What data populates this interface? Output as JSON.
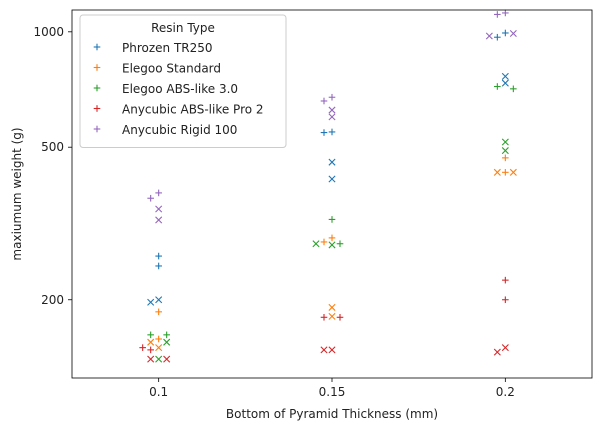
{
  "chart_data": {
    "type": "scatter",
    "xlabel": "Bottom of Pyramid Thickness (mm)",
    "ylabel": "maxiumum weight (g)",
    "x_categories": [
      "0.1",
      "0.15",
      "0.2"
    ],
    "y_ticks": [
      200,
      500,
      1000
    ],
    "ylim": [
      125,
      1140
    ],
    "legend": {
      "title": "Resin Type",
      "position": "top-left"
    },
    "marker_legend": {
      "plus": "+",
      "x": "×"
    },
    "series": [
      {
        "name": "Phrozen TR250",
        "color": "#1f77b4",
        "points": [
          {
            "x": "0.1",
            "y": 260,
            "marker": "plus"
          },
          {
            "x": "0.1",
            "y": 245,
            "marker": "plus"
          },
          {
            "x": "0.1",
            "y": 200,
            "marker": "x"
          },
          {
            "x": "0.1",
            "y": 197,
            "marker": "x"
          },
          {
            "x": "0.15",
            "y": 548,
            "marker": "plus"
          },
          {
            "x": "0.15",
            "y": 546,
            "marker": "plus"
          },
          {
            "x": "0.15",
            "y": 457,
            "marker": "x"
          },
          {
            "x": "0.15",
            "y": 413,
            "marker": "x"
          },
          {
            "x": "0.2",
            "y": 993,
            "marker": "plus"
          },
          {
            "x": "0.2",
            "y": 968,
            "marker": "plus"
          },
          {
            "x": "0.2",
            "y": 765,
            "marker": "x"
          },
          {
            "x": "0.2",
            "y": 735,
            "marker": "x"
          }
        ]
      },
      {
        "name": "Elegoo Standard",
        "color": "#ff7f0e",
        "points": [
          {
            "x": "0.1",
            "y": 158,
            "marker": "plus"
          },
          {
            "x": "0.1",
            "y": 186,
            "marker": "plus"
          },
          {
            "x": "0.1",
            "y": 155,
            "marker": "x"
          },
          {
            "x": "0.1",
            "y": 150,
            "marker": "x"
          },
          {
            "x": "0.15",
            "y": 290,
            "marker": "plus"
          },
          {
            "x": "0.15",
            "y": 283,
            "marker": "plus"
          },
          {
            "x": "0.15",
            "y": 191,
            "marker": "x"
          },
          {
            "x": "0.15",
            "y": 181,
            "marker": "x"
          },
          {
            "x": "0.2",
            "y": 469,
            "marker": "plus"
          },
          {
            "x": "0.2",
            "y": 430,
            "marker": "plus"
          },
          {
            "x": "0.2",
            "y": 430,
            "marker": "x"
          },
          {
            "x": "0.2",
            "y": 430,
            "marker": "x"
          }
        ]
      },
      {
        "name": "Elegoo ABS-like 3.0",
        "color": "#2ca02c",
        "points": [
          {
            "x": "0.1",
            "y": 162,
            "marker": "plus"
          },
          {
            "x": "0.1",
            "y": 162,
            "marker": "plus"
          },
          {
            "x": "0.1",
            "y": 155,
            "marker": "x"
          },
          {
            "x": "0.1",
            "y": 140,
            "marker": "x"
          },
          {
            "x": "0.15",
            "y": 324,
            "marker": "plus"
          },
          {
            "x": "0.15",
            "y": 280,
            "marker": "plus"
          },
          {
            "x": "0.15",
            "y": 280,
            "marker": "x"
          },
          {
            "x": "0.15",
            "y": 278,
            "marker": "x"
          },
          {
            "x": "0.2",
            "y": 720,
            "marker": "plus"
          },
          {
            "x": "0.2",
            "y": 710,
            "marker": "plus"
          },
          {
            "x": "0.2",
            "y": 516,
            "marker": "x"
          },
          {
            "x": "0.2",
            "y": 490,
            "marker": "x"
          }
        ]
      },
      {
        "name": "Anycubic ABS-like Pro 2",
        "color": "#d62728",
        "points": [
          {
            "x": "0.1",
            "y": 150,
            "marker": "plus"
          },
          {
            "x": "0.1",
            "y": 148,
            "marker": "plus"
          },
          {
            "x": "0.1",
            "y": 140,
            "marker": "x"
          },
          {
            "x": "0.1",
            "y": 140,
            "marker": "x"
          },
          {
            "x": "0.15",
            "y": 180,
            "marker": "plus"
          },
          {
            "x": "0.15",
            "y": 180,
            "marker": "plus"
          },
          {
            "x": "0.15",
            "y": 148,
            "marker": "x"
          },
          {
            "x": "0.15",
            "y": 148,
            "marker": "x"
          },
          {
            "x": "0.2",
            "y": 225,
            "marker": "plus"
          },
          {
            "x": "0.2",
            "y": 200,
            "marker": "plus"
          },
          {
            "x": "0.2",
            "y": 150,
            "marker": "x"
          },
          {
            "x": "0.2",
            "y": 146,
            "marker": "x"
          }
        ]
      },
      {
        "name": "Anycubic Rigid 100",
        "color": "#9467bd",
        "points": [
          {
            "x": "0.1",
            "y": 380,
            "marker": "plus"
          },
          {
            "x": "0.1",
            "y": 368,
            "marker": "plus"
          },
          {
            "x": "0.1",
            "y": 345,
            "marker": "x"
          },
          {
            "x": "0.1",
            "y": 323,
            "marker": "x"
          },
          {
            "x": "0.15",
            "y": 675,
            "marker": "plus"
          },
          {
            "x": "0.15",
            "y": 660,
            "marker": "plus"
          },
          {
            "x": "0.15",
            "y": 625,
            "marker": "x"
          },
          {
            "x": "0.15",
            "y": 600,
            "marker": "x"
          },
          {
            "x": "0.2",
            "y": 1120,
            "marker": "plus"
          },
          {
            "x": "0.2",
            "y": 1110,
            "marker": "plus"
          },
          {
            "x": "0.2",
            "y": 990,
            "marker": "x"
          },
          {
            "x": "0.2",
            "y": 975,
            "marker": "x"
          }
        ]
      }
    ]
  }
}
